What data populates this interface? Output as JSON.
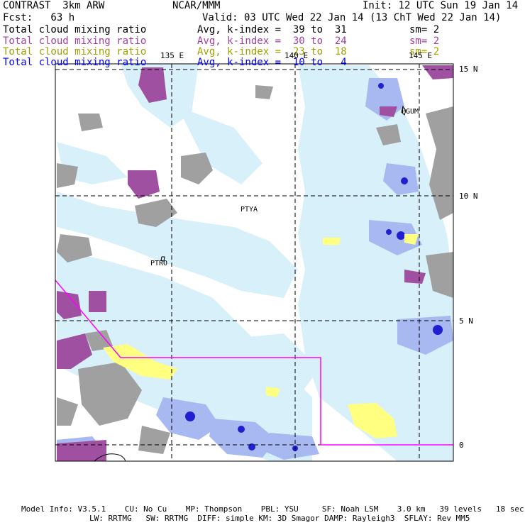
{
  "header": {
    "left_title": "CONTRAST  3km ARW",
    "center_title": "NCAR/MMM",
    "init": "Init: 12 UTC Sun 19 Jan 14",
    "forecast": "Fcst:   63 h",
    "valid": "Valid: 03 UTC Wed 22 Jan 14 (13 ChT Wed 22 Jan 14)"
  },
  "fields": [
    {
      "name": "Total cloud mixing ratio",
      "range": "Avg, k-index =  39 to  31",
      "sm": "sm= 2",
      "color": "#000000"
    },
    {
      "name": "Total cloud mixing ratio",
      "range": "Avg, k-index =  30 to  24",
      "sm": "sm= 2",
      "color": "#a040a0"
    },
    {
      "name": "Total cloud mixing ratio",
      "range": "Avg, k-index =  23 to  18",
      "sm": "sm= 2",
      "color": "#a0a000"
    },
    {
      "name": "Total cloud mixing ratio",
      "range": "Avg, k-index =  10 to   4",
      "sm": "",
      "color": "#0000ff"
    }
  ],
  "map": {
    "lon_labels": [
      "135 E",
      "140 E",
      "145 E"
    ],
    "lat_labels": [
      "15 N",
      "10 N",
      "5 N",
      "0"
    ],
    "stations": [
      "PGUM",
      "PTYA",
      "PTRO"
    ],
    "colors": {
      "gray_cloud": "#a0a0a0",
      "purple_cloud": "#a050a0",
      "yellow_cloud": "#ffff80",
      "light_blue": "#d8f0fa",
      "medium_blue": "#a8b8f0",
      "dark_blue": "#2020d0",
      "boundary": "#ff00ff"
    }
  },
  "footer": {
    "line1": "Model Info: V3.5.1    CU: No Cu    MP: Thompson    PBL: YSU     SF: Noah LSM    3.0 km   39 levels   18 sec",
    "line2": "LW: RRTMG   SW: RRTMG  DIFF: simple KM: 3D Smagor DAMP: Rayleigh3  SFLAY: Rev MM5"
  }
}
